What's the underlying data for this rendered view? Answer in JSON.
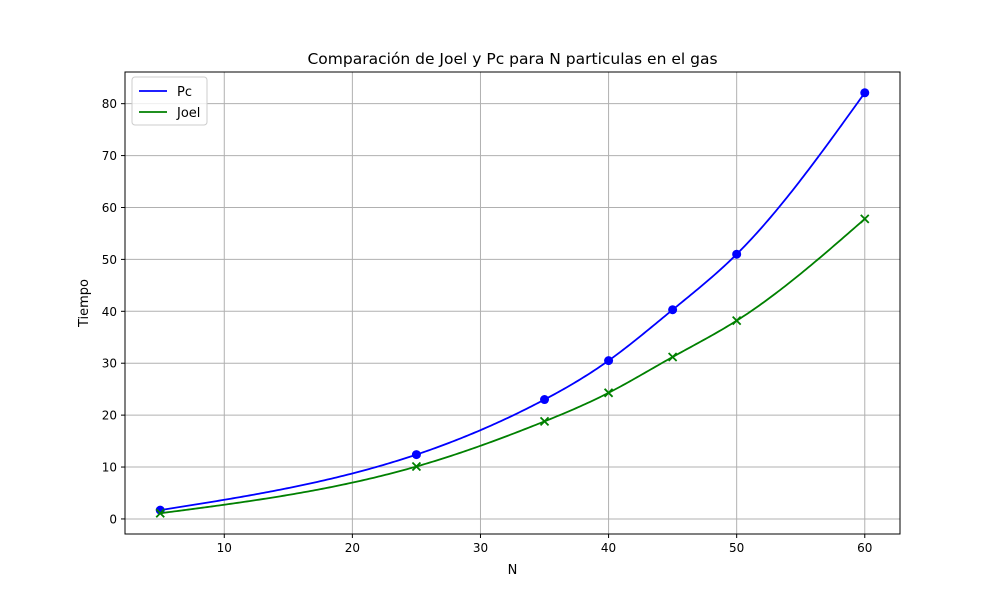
{
  "chart_data": {
    "type": "line",
    "title": "Comparación de Joel y Pc para N particulas en el gas",
    "xlabel": "N",
    "ylabel": "Tiempo",
    "xlim": [
      2.25,
      62.75
    ],
    "ylim": [
      -2.9,
      86.1
    ],
    "xticks": [
      10,
      20,
      30,
      40,
      50,
      60
    ],
    "yticks": [
      0,
      10,
      20,
      30,
      40,
      50,
      60,
      70,
      80
    ],
    "grid": true,
    "legend_position": "upper left",
    "series": [
      {
        "name": "Pc",
        "color": "#0000ff",
        "marker": "circle",
        "x": [
          5,
          25,
          35,
          40,
          45,
          50,
          60
        ],
        "y": [
          1.7,
          12.4,
          23.0,
          30.5,
          40.3,
          51.0,
          82.1
        ]
      },
      {
        "name": "Joel",
        "color": "#008000",
        "marker": "x",
        "x": [
          5,
          25,
          35,
          40,
          45,
          50,
          60
        ],
        "y": [
          1.1,
          10.1,
          18.8,
          24.3,
          31.2,
          38.2,
          57.8
        ]
      }
    ]
  }
}
